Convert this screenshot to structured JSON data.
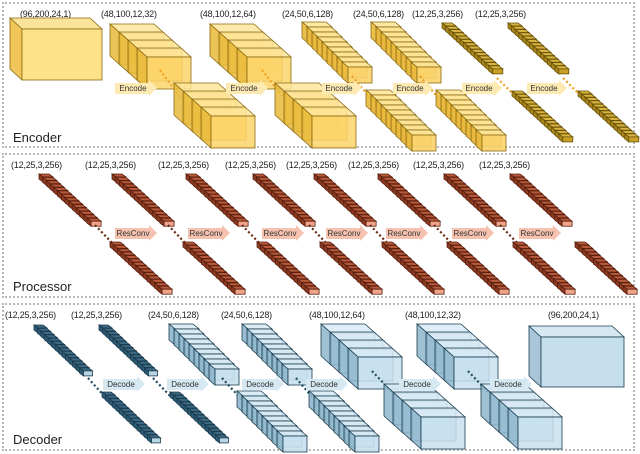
{
  "colors": {
    "encoder_fill": "#fbd667",
    "encoder_edge": "#8a6a10",
    "encoder_dark": "#a88a18",
    "encoder_arrow": "#fde9b2",
    "processor_fill": "#a84a2c",
    "processor_face": "#f2a48a",
    "processor_arrow": "#f5c2b0",
    "decoder_fill": "#27526a",
    "decoder_light": "#b9d6e6",
    "decoder_arrow": "#d6e8f2",
    "dots_encoder": "#f0a020",
    "dots_processor": "#6b2a16",
    "dots_decoder": "#1f4b62",
    "panel_border": "#b8b8b8"
  },
  "encoder": {
    "title": "Encoder",
    "labels": [
      "(96,200,24,1)",
      "(48,100,12,32)",
      "(48,100,12,64)",
      "(24,50,6,128)",
      "(24,50,6,128)",
      "(12,25,3,256)",
      "(12,25,3,256)"
    ],
    "arrows": [
      "Encode",
      "Encode",
      "Encode",
      "Encode",
      "Encode",
      "Encode"
    ]
  },
  "processor": {
    "title": "Processor",
    "labels": [
      "(12,25,3,256)",
      "(12,25,3,256)",
      "(12,25,3,256)",
      "(12,25,3,256)",
      "(12,25,3,256)",
      "(12,25,3,256)",
      "(12,25,3,256)",
      "(12,25,3,256)"
    ],
    "arrows": [
      "ResConv",
      "ResConv",
      "ResConv",
      "ResConv",
      "ResConv",
      "ResConv",
      "ResConv"
    ]
  },
  "decoder": {
    "title": "Decoder",
    "labels": [
      "(12,25,3,256)",
      "(12,25,3,256)",
      "(24,50,6,128)",
      "(24,50,6,128)",
      "(48,100,12,64)",
      "(48,100,12,32)",
      "(96,200,24,1)"
    ],
    "arrows": [
      "Decode",
      "Decode",
      "Decode",
      "Decode",
      "Decode",
      "Decode"
    ]
  }
}
